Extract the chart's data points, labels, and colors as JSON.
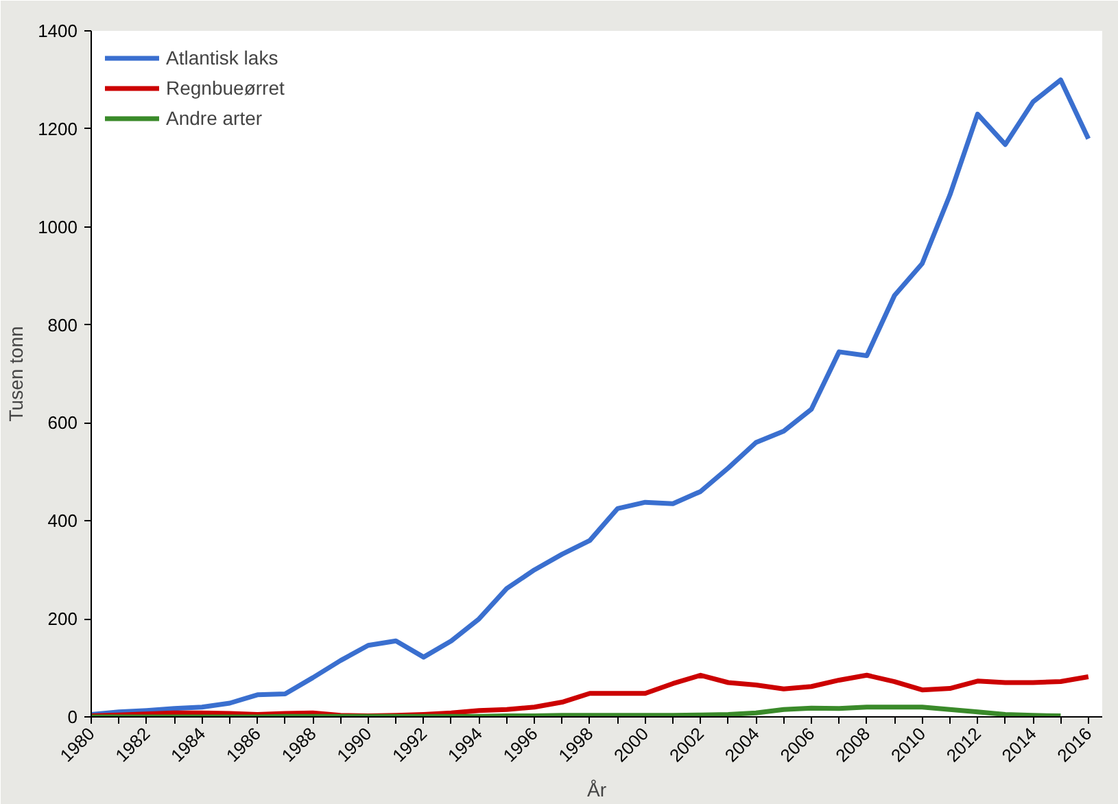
{
  "chart_data": {
    "type": "line",
    "xlabel": "År",
    "ylabel": "Tusen tonn",
    "x": [
      1980,
      1981,
      1982,
      1983,
      1984,
      1985,
      1986,
      1987,
      1988,
      1989,
      1990,
      1991,
      1992,
      1993,
      1994,
      1995,
      1996,
      1997,
      1998,
      1999,
      2000,
      2001,
      2002,
      2003,
      2004,
      2005,
      2006,
      2007,
      2008,
      2009,
      2010,
      2011,
      2012,
      2013,
      2014,
      2015,
      2016
    ],
    "series": [
      {
        "name": "Atlantisk laks",
        "color": "#3a6fcf",
        "values": [
          5,
          10,
          13,
          17,
          20,
          28,
          45,
          47,
          80,
          115,
          146,
          155,
          122,
          155,
          200,
          262,
          300,
          332,
          360,
          425,
          438,
          435,
          460,
          508,
          560,
          583,
          628,
          745,
          737,
          860,
          925,
          1065,
          1230,
          1168,
          1255,
          1300,
          1180
        ]
      },
      {
        "name": "Regnbueørret",
        "color": "#cc0000",
        "values": [
          2,
          4,
          6,
          8,
          8,
          7,
          5,
          7,
          8,
          3,
          2,
          3,
          5,
          8,
          13,
          15,
          20,
          30,
          48,
          48,
          48,
          68,
          85,
          70,
          65,
          57,
          62,
          75,
          85,
          72,
          55,
          58,
          73,
          70,
          70,
          72,
          82
        ]
      },
      {
        "name": "Andre arter",
        "color": "#3a8a2a",
        "values": [
          0,
          0,
          0,
          0,
          0,
          0,
          0,
          1,
          1,
          1,
          1,
          1,
          1,
          1,
          1,
          2,
          2,
          3,
          3,
          3,
          3,
          3,
          4,
          5,
          8,
          15,
          18,
          17,
          20,
          20,
          20,
          15,
          10,
          5,
          3,
          2,
          null
        ]
      }
    ],
    "xlim": [
      1980,
      2016.5
    ],
    "ylim": [
      0,
      1400
    ],
    "xticks": [
      1980,
      1982,
      1984,
      1986,
      1988,
      1990,
      1992,
      1994,
      1996,
      1998,
      2000,
      2002,
      2004,
      2006,
      2008,
      2010,
      2012,
      2014,
      2016
    ],
    "yticks": [
      0,
      200,
      400,
      600,
      800,
      1000,
      1200,
      1400
    ],
    "grid": false,
    "legend": "top left",
    "marker": "none",
    "line_style": "solid"
  }
}
